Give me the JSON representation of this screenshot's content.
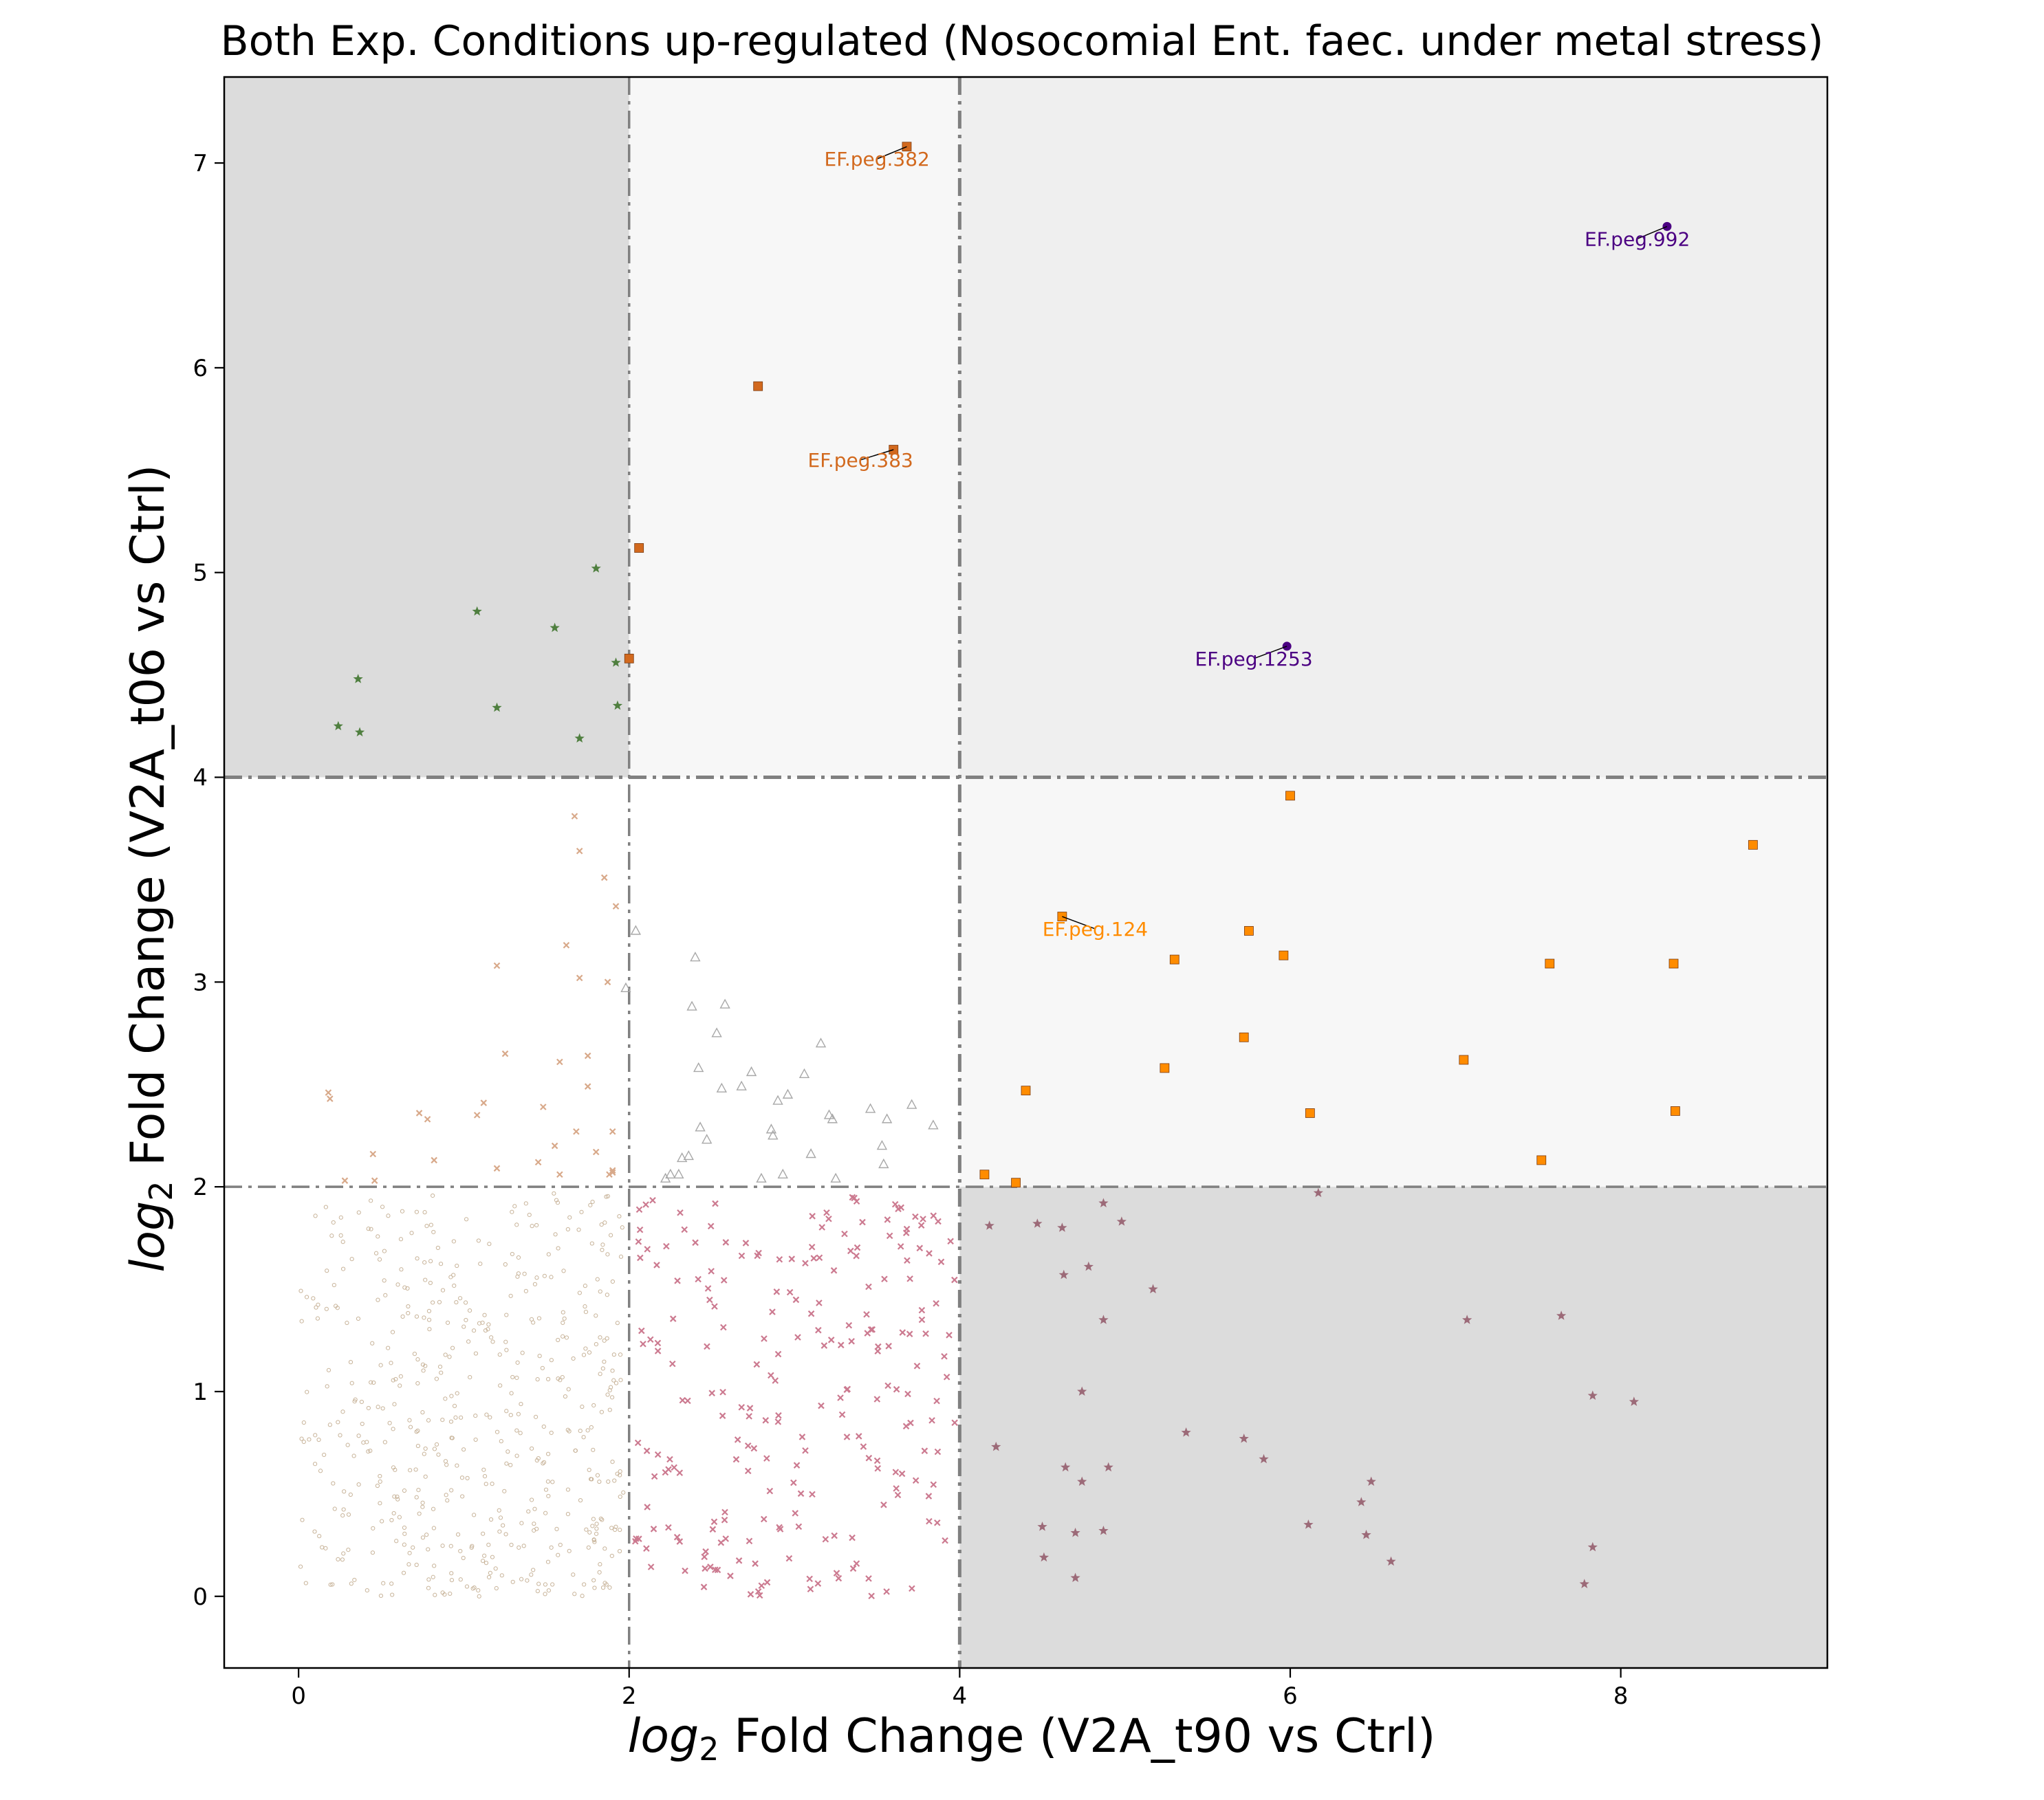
{
  "chart_data": {
    "type": "scatter",
    "title": "Both Exp. Conditions up-regulated (Nosocomial Ent. faec. under metal stress)",
    "xlabel_prefix": "log",
    "xlabel_sub": "2",
    "xlabel_rest": " Fold Change (V2A_t90 vs Ctrl)",
    "ylabel_prefix": "log",
    "ylabel_sub": "2",
    "ylabel_rest": " Fold Change (V2A_t06 vs Ctrl)",
    "xlim": [
      -0.45,
      9.25
    ],
    "ylim": [
      -0.35,
      7.42
    ],
    "xticks": [
      0,
      2,
      4,
      6,
      8
    ],
    "yticks": [
      0,
      1,
      2,
      3,
      4,
      5,
      6,
      7
    ],
    "thresholds": {
      "x": [
        2,
        4
      ],
      "y": [
        2,
        4
      ]
    },
    "grid": false,
    "legend": "none",
    "colors": {
      "quadrant_dark": "#dcdcdc",
      "quadrant_mid": "#efefef",
      "quadrant_light": "#f7f7f7",
      "threshold_line": "#808080",
      "both_high": "#4b0082",
      "high_orange": "#d2691e",
      "mid_orange": "#ff8c00",
      "green_star": "#4f7f3f",
      "mauve_star": "#9c6a78",
      "pink_x": "#cc7a90",
      "tan_x": "#d8a98a",
      "gray_triangle": "#a8a8a8",
      "tan_dot": "#c8b49a"
    },
    "labeled_points": [
      {
        "label": "EF.peg.382",
        "x": 3.68,
        "y": 7.08,
        "lx": 3.5,
        "ly": 7.02,
        "color": "#d2691e",
        "marker": "square"
      },
      {
        "label": "EF.peg.383",
        "x": 3.6,
        "y": 5.6,
        "lx": 3.4,
        "ly": 5.55,
        "color": "#d2691e",
        "marker": "square"
      },
      {
        "label": "EF.peg.992",
        "x": 8.28,
        "y": 6.69,
        "lx": 8.1,
        "ly": 6.63,
        "color": "#4b0082",
        "marker": "circle"
      },
      {
        "label": "EF.peg.1253",
        "x": 5.98,
        "y": 4.64,
        "lx": 5.78,
        "ly": 4.58,
        "color": "#4b0082",
        "marker": "circle"
      },
      {
        "label": "EF.peg.124",
        "x": 4.62,
        "y": 3.32,
        "lx": 4.82,
        "ly": 3.26,
        "color": "#ff8c00",
        "marker": "square"
      }
    ],
    "series": [
      {
        "marker": "square",
        "color": "#d2691e",
        "x": [
          2.78,
          2.06,
          2.0
        ],
        "y": [
          5.91,
          5.12,
          4.58
        ]
      },
      {
        "marker": "square",
        "color": "#ff8c00",
        "x": [
          6.0,
          8.8,
          5.75,
          5.3,
          5.96,
          7.57,
          8.32,
          5.72,
          4.4,
          5.24,
          7.05,
          6.12,
          8.33,
          7.52,
          4.15,
          4.34
        ],
        "y": [
          3.91,
          3.67,
          3.25,
          3.11,
          3.13,
          3.09,
          3.09,
          2.73,
          2.47,
          2.58,
          2.62,
          2.36,
          2.37,
          2.13,
          2.06,
          2.02
        ]
      },
      {
        "marker": "star",
        "color": "#4f7f3f",
        "x": [
          1.8,
          1.08,
          1.55,
          0.36,
          1.92,
          1.2,
          1.93,
          0.24,
          0.37,
          1.7
        ],
        "y": [
          5.02,
          4.81,
          4.73,
          4.48,
          4.56,
          4.34,
          4.35,
          4.25,
          4.22,
          4.19
        ]
      },
      {
        "marker": "star",
        "color": "#9c6a78",
        "x": [
          4.18,
          4.47,
          4.62,
          4.98,
          6.17,
          4.87,
          4.78,
          4.63,
          5.17,
          7.07,
          7.64,
          4.87,
          4.74,
          7.83,
          8.08,
          4.22,
          5.37,
          5.72,
          5.84,
          4.64,
          4.9,
          4.74,
          6.49,
          6.43,
          6.11,
          4.5,
          4.7,
          4.87,
          6.46,
          7.83,
          4.51,
          6.61,
          4.7,
          7.78
        ],
        "y": [
          1.81,
          1.82,
          1.8,
          1.83,
          1.97,
          1.92,
          1.61,
          1.57,
          1.5,
          1.35,
          1.37,
          1.35,
          1.0,
          0.98,
          0.95,
          0.73,
          0.8,
          0.77,
          0.67,
          0.63,
          0.63,
          0.56,
          0.56,
          0.46,
          0.35,
          0.34,
          0.31,
          0.32,
          0.3,
          0.24,
          0.19,
          0.17,
          0.09,
          0.06
        ]
      },
      {
        "marker": "triangle",
        "color": "#a8a8a8",
        "x": [
          2.04,
          2.4,
          2.58,
          2.38,
          2.53,
          3.16,
          2.42,
          2.74,
          3.06,
          2.56,
          2.68,
          2.9,
          2.96,
          3.46,
          3.71,
          3.84,
          3.56,
          3.53,
          3.23,
          3.21,
          2.86,
          2.43,
          2.87,
          2.47,
          3.54,
          3.1,
          2.36,
          2.32,
          2.93,
          3.25,
          2.25,
          2.22,
          2.3,
          2.8,
          1.98
        ],
        "y": [
          3.25,
          3.12,
          2.89,
          2.88,
          2.75,
          2.7,
          2.58,
          2.56,
          2.55,
          2.48,
          2.49,
          2.42,
          2.45,
          2.38,
          2.4,
          2.3,
          2.33,
          2.2,
          2.33,
          2.35,
          2.28,
          2.29,
          2.25,
          2.23,
          2.11,
          2.16,
          2.15,
          2.14,
          2.06,
          2.04,
          2.06,
          2.04,
          2.06,
          2.04,
          2.97
        ]
      },
      {
        "marker": "x",
        "color": "#d8a98a",
        "x": [
          1.67,
          1.7,
          1.85,
          1.92,
          1.62,
          1.2,
          1.7,
          1.87,
          1.75,
          1.12,
          0.18,
          0.19,
          0.73,
          1.25,
          1.75,
          1.58,
          1.48,
          0.78,
          1.08,
          1.68,
          1.8,
          1.55,
          1.9,
          1.88,
          0.45,
          0.82,
          1.45,
          1.2,
          1.9,
          1.58,
          0.28,
          0.46,
          1.9
        ],
        "y": [
          3.81,
          3.64,
          3.51,
          3.37,
          3.18,
          3.08,
          3.02,
          3.0,
          2.64,
          2.41,
          2.46,
          2.43,
          2.36,
          2.65,
          2.49,
          2.61,
          2.39,
          2.33,
          2.35,
          2.27,
          2.17,
          2.2,
          2.27,
          2.06,
          2.16,
          2.13,
          2.12,
          2.09,
          2.07,
          2.06,
          2.03,
          2.03,
          2.08
        ]
      }
    ]
  }
}
